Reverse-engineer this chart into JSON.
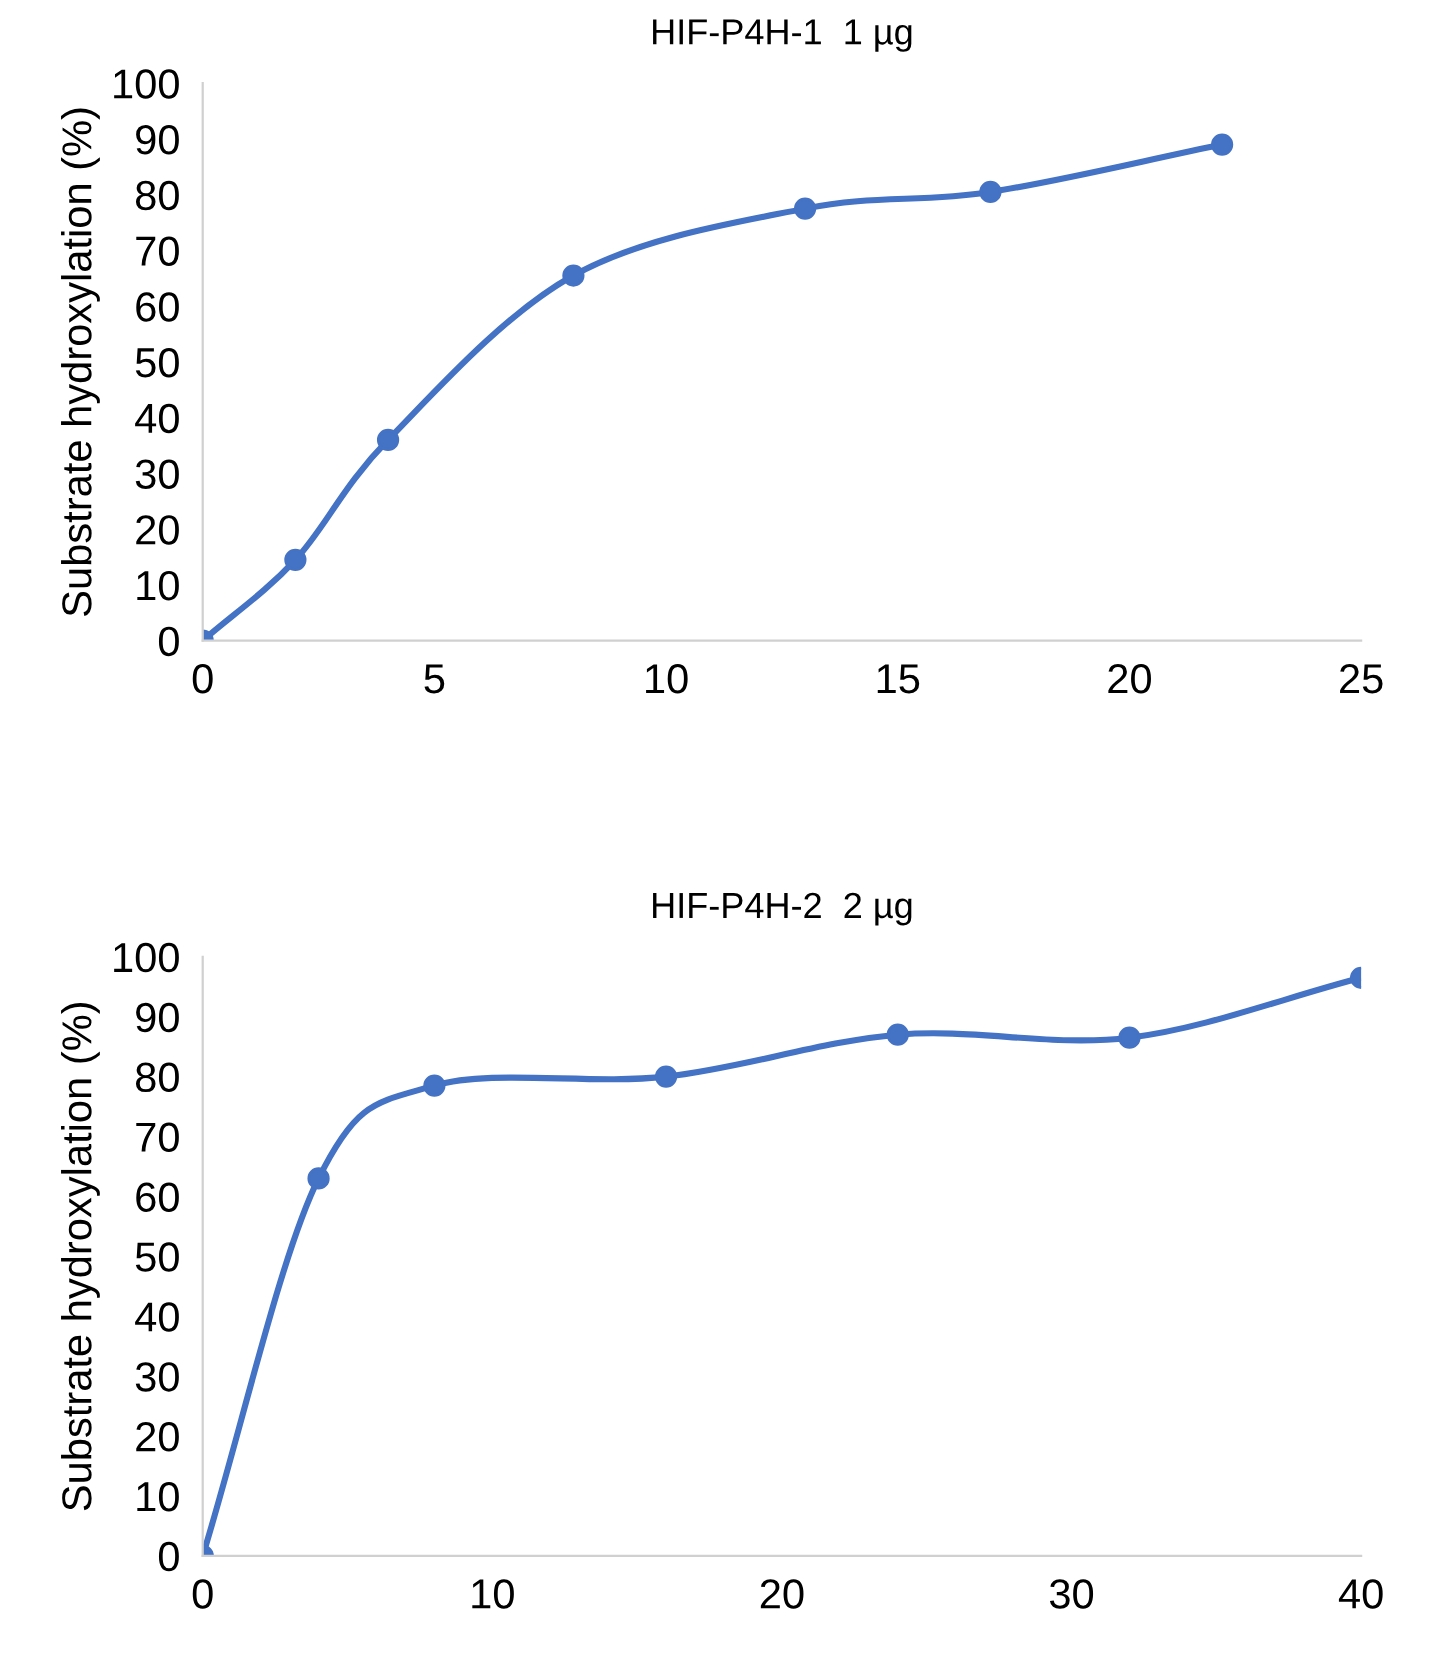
{
  "chart_data": [
    {
      "type": "line",
      "title": "HIF-P4H-1  1 µg",
      "ylabel": "Substrate hydroxylation (%)",
      "x": [
        0,
        2,
        4,
        8,
        13,
        17,
        22
      ],
      "series": [
        {
          "color": "#4472c4",
          "values": [
            0,
            14.5,
            36,
            65.5,
            77.5,
            80.5,
            89
          ]
        }
      ],
      "xlim": [
        0,
        25
      ],
      "xticks": [
        0,
        5,
        10,
        15,
        20,
        25
      ],
      "ylim": [
        0,
        100
      ],
      "yticks": [
        0,
        10,
        20,
        30,
        40,
        50,
        60,
        70,
        80,
        90,
        100
      ],
      "marker": "circle",
      "line_style": "solid",
      "grid": false,
      "legend": false
    },
    {
      "type": "line",
      "title": "HIF-P4H-2  2 µg",
      "ylabel": "Substrate hydroxylation (%)",
      "x": [
        0,
        4,
        8,
        16,
        24,
        32,
        40
      ],
      "series": [
        {
          "color": "#4472c4",
          "values": [
            0,
            63,
            78.5,
            80,
            87,
            86.5,
            96.5
          ]
        }
      ],
      "xlim": [
        0,
        40
      ],
      "xticks": [
        0,
        10,
        20,
        30,
        40
      ],
      "ylim": [
        0,
        100
      ],
      "yticks": [
        0,
        10,
        20,
        30,
        40,
        50,
        60,
        70,
        80,
        90,
        100
      ],
      "marker": "circle",
      "line_style": "solid",
      "grid": false,
      "legend": false
    }
  ]
}
